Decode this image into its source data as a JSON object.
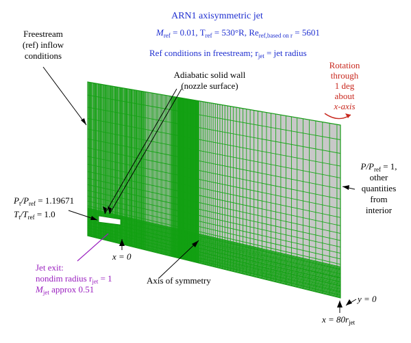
{
  "header": {
    "line1": "ARN1 axisymmetric jet",
    "line2_pre": "M",
    "line2_sub1": "ref",
    "line2_mid1": " = 0.01, T",
    "line2_sub2": "ref",
    "line2_mid2": " = 530°R, Re",
    "line2_sub3": "ref,based on r",
    "line2_end": " = 5601",
    "line3_pre": "Ref conditions in freestream; r",
    "line3_sub": "jet",
    "line3_end": " = jet radius"
  },
  "labels": {
    "freestream": [
      "Freestream",
      "(ref) inflow",
      "conditions"
    ],
    "wall": [
      "Adiabatic solid wall",
      "(nozzle surface)"
    ],
    "rotation": [
      "Rotation",
      "through",
      "1 deg",
      "about",
      "x-axis"
    ],
    "outflow_l1_pre": "P/P",
    "outflow_l1_sub": "ref",
    "outflow_l1_end": " = 1,",
    "outflow_rest": [
      "other",
      "quantities",
      "from",
      "interior"
    ],
    "inflow_pt_pre": "P",
    "inflow_pt_sub1": "t",
    "inflow_pt_mid": "/P",
    "inflow_pt_sub2": "ref",
    "inflow_pt_end": " = 1.19671",
    "inflow_tt_pre": "T",
    "inflow_tt_sub1": "t",
    "inflow_tt_mid": "/T",
    "inflow_tt_sub2": "ref",
    "inflow_tt_end": " = 1.0",
    "x0": "x = 0",
    "jet_exit_l1": "Jet exit:",
    "jet_exit_l2_pre": "nondim radius r",
    "jet_exit_l2_sub": "jet",
    "jet_exit_l2_end": " = 1",
    "jet_exit_l3_pre": "M",
    "jet_exit_l3_sub": "jet",
    "jet_exit_l3_end": " approx 0.51",
    "axis": "Axis of symmetry",
    "y0": "y = 0",
    "x80_pre": "x = 80r",
    "x80_sub": "jet"
  },
  "colors": {
    "mesh": "#1aa51a",
    "mesh_dense": "#12a012",
    "mesh_bg": "#c8c8c8",
    "header_text": "#1f2fd0",
    "rotation_text": "#c8281e",
    "jet_exit_text": "#9a1fbf"
  }
}
